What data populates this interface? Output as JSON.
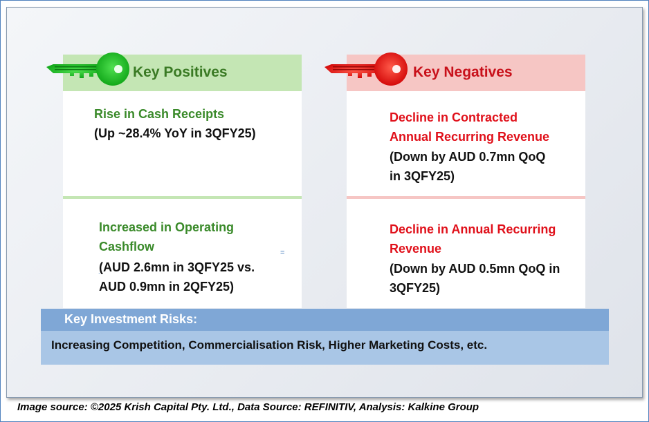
{
  "positives": {
    "header": "Key Positives",
    "items": [
      {
        "title": "Rise in Cash Receipts",
        "detail": "(Up ~28.4% YoY in 3QFY25)"
      },
      {
        "title_line1": "Increased in Operating",
        "title_line2": "Cashflow",
        "detail_line1": "(AUD 2.6mn in 3QFY25 vs.",
        "detail_line2": "AUD 0.9mn in 2QFY25)"
      }
    ]
  },
  "negatives": {
    "header": "Key Negatives",
    "items": [
      {
        "title_line1": "Decline in Contracted",
        "title_line2": "Annual Recurring Revenue",
        "detail_line1": "(Down by AUD 0.7mn QoQ",
        "detail_line2": "in 3QFY25)"
      },
      {
        "title_line1": "Decline in Annual Recurring",
        "title_line2": "Revenue",
        "detail_line1": "(Down by AUD 0.5mn QoQ in",
        "detail_line2": "3QFY25)"
      }
    ]
  },
  "risks": {
    "header": "Key Investment Risks:",
    "body": "Increasing Competition, Commercialisation Risk, Higher Marketing Costs, etc."
  },
  "source": "Image source: ©2025 Krish Capital Pty. Ltd., Data Source: REFINITIV, Analysis: Kalkine Group",
  "colors": {
    "positive": "#3a8a2a",
    "positive_key": "#22c02a",
    "positive_header_bg": "#c4e6b4",
    "negative": "#e0101a",
    "negative_key": "#ee1010",
    "negative_header_bg": "#f6c6c4"
  }
}
